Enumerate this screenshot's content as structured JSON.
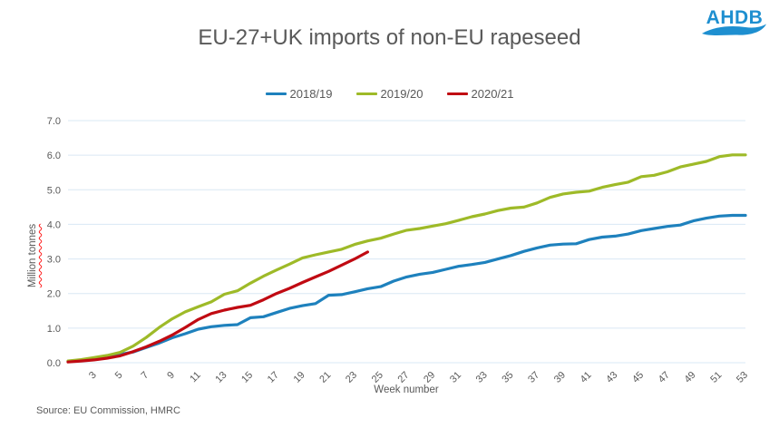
{
  "logo": {
    "text": "AHDB",
    "color": "#1e8fd0"
  },
  "source": "Source: EU Commission, HMRC",
  "chart_data": {
    "type": "line",
    "title": "EU-27+UK imports of non-EU rapeseed",
    "xlabel": "Week number",
    "ylabel": "Million tonnes",
    "xlim": [
      1,
      53
    ],
    "ylim": [
      0,
      7
    ],
    "y_ticks": [
      "0.0",
      "1.0",
      "2.0",
      "3.0",
      "4.0",
      "5.0",
      "6.0",
      "7.0"
    ],
    "x_ticks": [
      3,
      5,
      7,
      9,
      11,
      13,
      15,
      17,
      19,
      21,
      23,
      25,
      27,
      29,
      31,
      33,
      35,
      37,
      39,
      41,
      43,
      45,
      47,
      49,
      51,
      53
    ],
    "grid": "horizontal",
    "grid_color": "#dae8f4",
    "axis_text_color": "#595959",
    "legend_position": "top-center",
    "series": [
      {
        "name": "2018/19",
        "color": "#1e81bd",
        "start_week": 1,
        "values": [
          0.03,
          0.06,
          0.1,
          0.14,
          0.24,
          0.31,
          0.44,
          0.57,
          0.72,
          0.84,
          0.97,
          1.04,
          1.08,
          1.1,
          1.3,
          1.33,
          1.45,
          1.57,
          1.65,
          1.71,
          1.95,
          1.97,
          2.05,
          2.14,
          2.2,
          2.36,
          2.48,
          2.56,
          2.61,
          2.7,
          2.79,
          2.84,
          2.9,
          3.0,
          3.1,
          3.22,
          3.32,
          3.4,
          3.43,
          3.44,
          3.56,
          3.63,
          3.66,
          3.72,
          3.82,
          3.88,
          3.94,
          3.98,
          4.1,
          4.18,
          4.24,
          4.26,
          4.26
        ]
      },
      {
        "name": "2019/20",
        "color": "#9eba28",
        "start_week": 1,
        "values": [
          0.05,
          0.09,
          0.15,
          0.21,
          0.3,
          0.48,
          0.73,
          1.02,
          1.27,
          1.47,
          1.62,
          1.76,
          1.98,
          2.08,
          2.3,
          2.5,
          2.68,
          2.85,
          3.03,
          3.12,
          3.2,
          3.28,
          3.42,
          3.52,
          3.6,
          3.72,
          3.83,
          3.88,
          3.95,
          4.02,
          4.12,
          4.22,
          4.3,
          4.4,
          4.47,
          4.5,
          4.62,
          4.78,
          4.88,
          4.93,
          4.96,
          5.07,
          5.15,
          5.22,
          5.38,
          5.42,
          5.52,
          5.66,
          5.74,
          5.82,
          5.96,
          6.01,
          6.01
        ]
      },
      {
        "name": "2020/21",
        "color": "#c00a12",
        "start_week": 1,
        "values": [
          0.02,
          0.05,
          0.08,
          0.13,
          0.2,
          0.32,
          0.46,
          0.62,
          0.8,
          1.02,
          1.25,
          1.42,
          1.52,
          1.6,
          1.66,
          1.82,
          2.0,
          2.15,
          2.32,
          2.48,
          2.64,
          2.82,
          3.0,
          3.2
        ]
      }
    ]
  }
}
